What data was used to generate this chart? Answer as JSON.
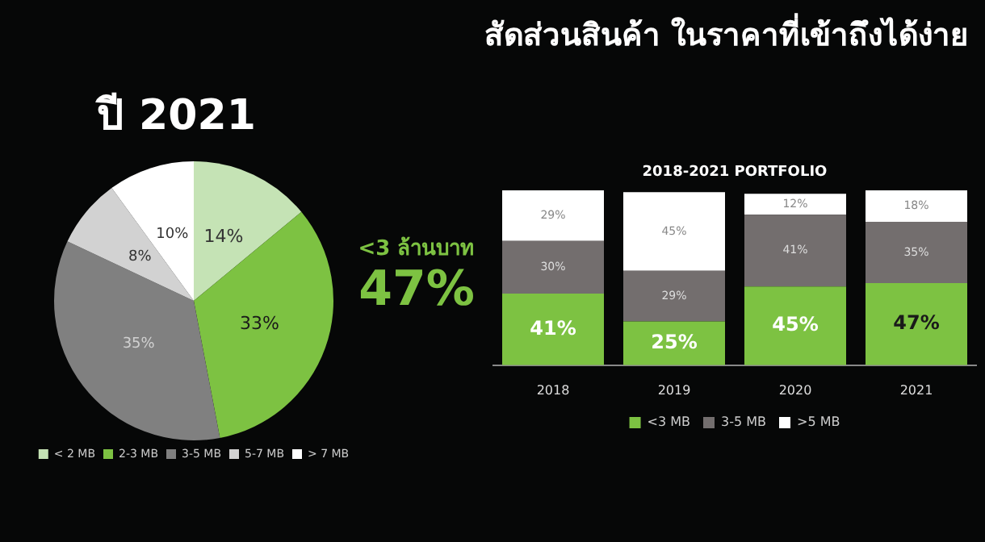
{
  "chart_data": [
    {
      "type": "other",
      "title": "สัดส่วนสินค้า ในราคาที่เข้าถึงได้ง่าย"
    },
    {
      "type": "pie",
      "subtitle": "ปี 2021",
      "categories": [
        "< 2 MB",
        "2-3 MB",
        "3-5 MB",
        "5-7 MB",
        "> 7 MB"
      ],
      "values": [
        14,
        33,
        35,
        8,
        10
      ],
      "value_labels": [
        "14%",
        "33%",
        "35%",
        "8%",
        "10%"
      ],
      "colors": [
        "#c5e3b5",
        "#7dc242",
        "#808080",
        "#d2d2d2",
        "#ffffff"
      ],
      "legend": "bottom",
      "annotations": [
        "<3 ล้านบาท",
        "47%"
      ]
    },
    {
      "type": "bar",
      "title": "2018-2021 PORTFOLIO",
      "categories": [
        "2018",
        "2019",
        "2020",
        "2021"
      ],
      "stacked": true,
      "legend": "bottom",
      "tick_labels": "x",
      "series": [
        {
          "name": "<3 MB",
          "color": "#7dc242",
          "values": [
            41,
            25,
            45,
            47
          ],
          "value_labels": [
            "41%",
            "25%",
            "45%",
            "47%"
          ]
        },
        {
          "name": "3-5 MB",
          "color": "#736e6e",
          "values": [
            30,
            29,
            41,
            35
          ],
          "value_labels": [
            "30%",
            "29%",
            "41%",
            "35%"
          ]
        },
        {
          "name": ">5 MB",
          "color": "#ffffff",
          "values": [
            29,
            45,
            12,
            18
          ],
          "value_labels": [
            "29%",
            "45%",
            "12%",
            "18%"
          ]
        }
      ]
    }
  ]
}
